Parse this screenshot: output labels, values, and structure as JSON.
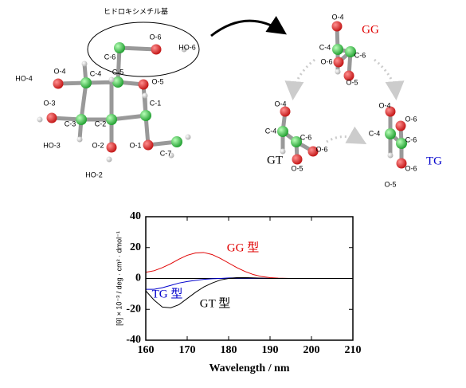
{
  "diagram": {
    "group_label": "ヒドロキシメチル基",
    "glucose_labels": [
      "HO-4",
      "O-4",
      "C-4",
      "C-5",
      "O-5",
      "C-6",
      "O-6",
      "HO-6",
      "O-3",
      "C-3",
      "C-2",
      "C-1",
      "HO-3",
      "O-2",
      "O-1",
      "C-7",
      "HO-2"
    ],
    "conformers": [
      {
        "name": "GG",
        "color": "#e00000",
        "labels": [
          "O-4",
          "C-4",
          "C-6",
          "O-6",
          "O-5"
        ]
      },
      {
        "name": "GT",
        "color": "#000000",
        "labels": [
          "O-4",
          "C-4",
          "C-6",
          "O-6",
          "O-5"
        ]
      },
      {
        "name": "TG",
        "color": "#0000cc",
        "labels": [
          "O-4",
          "C-4",
          "O-6",
          "C-6",
          "O-6",
          "O-5"
        ]
      }
    ]
  },
  "chart_data": {
    "type": "line",
    "x": [
      160,
      162,
      164,
      166,
      168,
      170,
      172,
      174,
      176,
      178,
      180,
      182,
      184,
      186,
      188,
      190,
      192,
      195,
      200,
      205,
      210
    ],
    "series": [
      {
        "name": "GG 型",
        "color": "#e00000",
        "values": [
          4,
          5,
          7,
          9.5,
          12.5,
          15,
          16.5,
          16.8,
          15.5,
          13,
          10,
          7,
          4.5,
          2.5,
          1.2,
          0.5,
          0.2,
          0,
          0,
          0,
          0
        ]
      },
      {
        "name": "TG 型",
        "color": "#0000cc",
        "values": [
          -7,
          -7,
          -6,
          -4.5,
          -3,
          -2,
          -1.2,
          -0.6,
          -0.2,
          0,
          0.3,
          0.4,
          0.3,
          0.2,
          0.1,
          0,
          0,
          0,
          0,
          0,
          0
        ]
      },
      {
        "name": "GT 型",
        "color": "#000000",
        "values": [
          -8,
          -14,
          -18.5,
          -19,
          -17,
          -13,
          -9,
          -5.5,
          -3,
          -1,
          0,
          0.5,
          0.6,
          0.4,
          0.2,
          0,
          0,
          0,
          0,
          0,
          0
        ]
      }
    ],
    "xlabel": "Wavelength / nm",
    "ylabel": "[θ] × 10⁻³ / deg · cm² · dmol⁻¹",
    "xlim": [
      160,
      210
    ],
    "ylim": [
      -40,
      40
    ],
    "xticks": [
      160,
      170,
      180,
      190,
      200,
      210
    ],
    "yticks": [
      -40,
      -20,
      0,
      20,
      40
    ]
  }
}
